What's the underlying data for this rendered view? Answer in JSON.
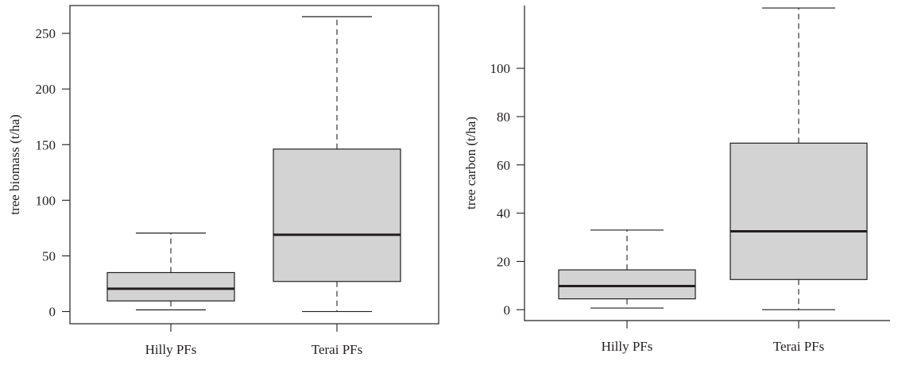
{
  "chart_data": [
    {
      "type": "box",
      "ylabel": "tree biomass (t/ha)",
      "categories": [
        "Hilly PFs",
        "Terai PFs"
      ],
      "yticks": [
        0,
        50,
        100,
        150,
        200,
        250
      ],
      "ylim": [
        -11,
        275
      ],
      "boxes": [
        {
          "min": 1.5,
          "q1": 9.5,
          "median": 20.5,
          "q3": 35,
          "max": 70.5
        },
        {
          "min": 0,
          "q1": 27,
          "median": 69,
          "q3": 146,
          "max": 265
        }
      ],
      "box_fill": "#d3d3d3"
    },
    {
      "type": "box",
      "ylabel": "tree carbon (t/ha)",
      "categories": [
        "Hilly PFs",
        "Terai PFs"
      ],
      "yticks": [
        0,
        20,
        40,
        60,
        80,
        100
      ],
      "ylim": [
        -4.5,
        126
      ],
      "boxes": [
        {
          "min": 0.7,
          "q1": 4.5,
          "median": 9.8,
          "q3": 16.5,
          "max": 33
        },
        {
          "min": 0,
          "q1": 12.5,
          "median": 32.5,
          "q3": 69,
          "max": 125
        }
      ],
      "box_fill": "#d3d3d3"
    }
  ]
}
